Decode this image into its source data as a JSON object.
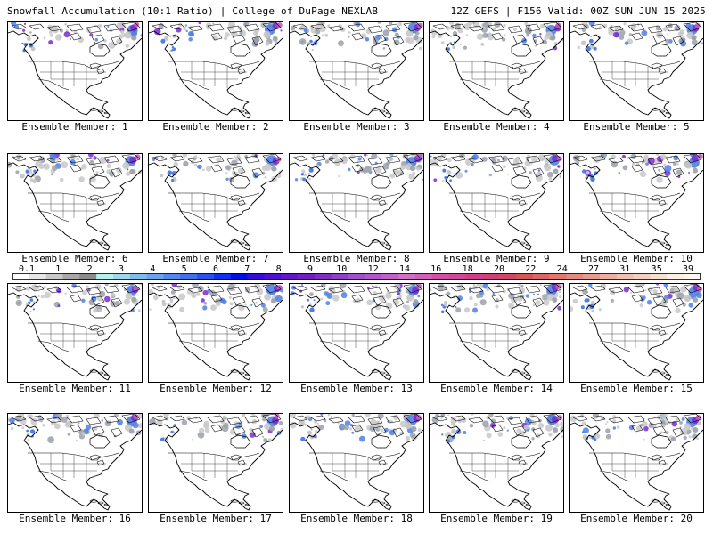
{
  "header": {
    "left_title": "Snowfall Accumulation (10:1 Ratio) | College of DuPage NEXLAB",
    "right_title": "12Z GEFS | F156 Valid: 00Z SUN JUN 15 2025"
  },
  "member_label_prefix": "Ensemble Member:",
  "members": [
    1,
    2,
    3,
    4,
    5,
    6,
    7,
    8,
    9,
    10,
    11,
    12,
    13,
    14,
    15,
    16,
    17,
    18,
    19,
    20
  ],
  "colorbar": {
    "tick_labels": [
      "0.1",
      "1",
      "2",
      "3",
      "4",
      "5",
      "6",
      "7",
      "8",
      "9",
      "10",
      "12",
      "14",
      "16",
      "18",
      "20",
      "22",
      "24",
      "27",
      "31",
      "35",
      "39"
    ],
    "colors": [
      "#ffffff",
      "#e6e6e6",
      "#c8c8c8",
      "#a8a8a8",
      "#8c8c8c",
      "#b4f0f0",
      "#9fd8ec",
      "#7fbcec",
      "#6aa4ec",
      "#5588ee",
      "#4070ee",
      "#2a50ee",
      "#1030ee",
      "#0010e0",
      "#3010d8",
      "#5010d0",
      "#6018c8",
      "#7020c0",
      "#8030c0",
      "#9040c8",
      "#a050c8",
      "#b058c8",
      "#c060c8",
      "#d070c8",
      "#d060b8",
      "#d050a8",
      "#d04898",
      "#d04088",
      "#d04078",
      "#d04868",
      "#d05858",
      "#d86868",
      "#e07870",
      "#e48a80",
      "#e89c90",
      "#ecaea0",
      "#f0c0b0",
      "#f4d0c0",
      "#f8e0d0",
      "#fcf0e4",
      "#fff8f0"
    ]
  },
  "map_colors": {
    "coast": "#000000",
    "snow_light": "#c8c8c8",
    "snow_mid": "#9aa0aa",
    "snow_blue": "#4f7fe6",
    "snow_purple": "#7a2cd0",
    "snow_magenta": "#c85ab8"
  }
}
